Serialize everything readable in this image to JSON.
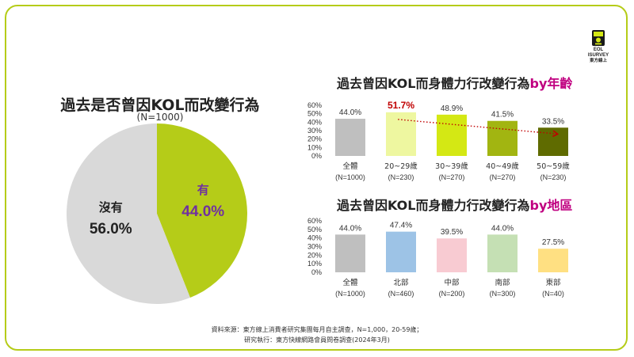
{
  "logo": {
    "line1": "EOL",
    "line2": "ISURVEY",
    "line3": "東方線上"
  },
  "pie": {
    "title": "過去是否曾因KOL而改變行為",
    "subtitle": "(N=1000)"
  },
  "age_chart": {
    "title_main": "過去曾因KOL而身體力行改變行為",
    "title_highlight": "by年齡"
  },
  "region_chart": {
    "title_main": "過去曾因KOL而身體力行改變行為",
    "title_highlight": "by地區"
  },
  "footer": {
    "line1": "資料來源：東方線上消費者研究集團每月自主調查，N=1,000，20-59歲；",
    "line2": "研究執行：東方快線網路會員問卷調查(2024年3月)"
  },
  "colors": {
    "frame": "#b5cc18",
    "pie_yes": "#b5cc18",
    "pie_no": "#d9d9d9",
    "yes_text": "#7030a0",
    "highlight_title": "#c00080",
    "trend_line": "#c00000"
  },
  "chart_data": [
    {
      "type": "pie",
      "slices": [
        {
          "label": "有",
          "value": 44.0,
          "display": "44.0%",
          "color": "#b5cc18",
          "label_color": "#7030a0"
        },
        {
          "label": "沒有",
          "value": 56.0,
          "display": "56.0%",
          "color": "#d9d9d9",
          "label_color": "#222222"
        }
      ]
    },
    {
      "type": "bar",
      "categories": [
        "全體",
        "20~29歲",
        "30~39歲",
        "40~49歲",
        "50~59歲"
      ],
      "sublabels": [
        "(N=1000)",
        "(N=230)",
        "(N=270)",
        "(N=270)",
        "(N=230)"
      ],
      "values": [
        44.0,
        51.7,
        48.9,
        41.5,
        33.5
      ],
      "value_labels": [
        "44.0%",
        "51.7%",
        "48.9%",
        "41.5%",
        "33.5%"
      ],
      "colors": [
        "#bfbfbf",
        "#eef7a0",
        "#d4e814",
        "#a2b511",
        "#5f6b00"
      ],
      "emphasis_index": 1,
      "yticks": [
        0,
        10,
        20,
        30,
        40,
        50,
        60
      ],
      "ytick_labels": [
        "0%",
        "10%",
        "20%",
        "30%",
        "40%",
        "50%",
        "60%"
      ],
      "ylim": [
        0,
        60
      ],
      "grid": false,
      "trendline": {
        "from": 1,
        "to": 4,
        "style": "dotted",
        "color": "#c00000"
      }
    },
    {
      "type": "bar",
      "categories": [
        "全體",
        "北部",
        "中部",
        "南部",
        "東部"
      ],
      "sublabels": [
        "(N=1000)",
        "(N=460)",
        "(N=200)",
        "(N=300)",
        "(N=40)"
      ],
      "values": [
        44.0,
        47.4,
        39.5,
        44.0,
        27.5
      ],
      "value_labels": [
        "44.0%",
        "47.4%",
        "39.5%",
        "44.0%",
        "27.5%"
      ],
      "colors": [
        "#bfbfbf",
        "#9dc3e6",
        "#f8cbd2",
        "#c5e0b4",
        "#ffe082"
      ],
      "yticks": [
        0,
        10,
        20,
        30,
        40,
        50,
        60
      ],
      "ytick_labels": [
        "0%",
        "10%",
        "20%",
        "30%",
        "40%",
        "50%",
        "60%"
      ],
      "ylim": [
        0,
        60
      ],
      "grid": false
    }
  ]
}
